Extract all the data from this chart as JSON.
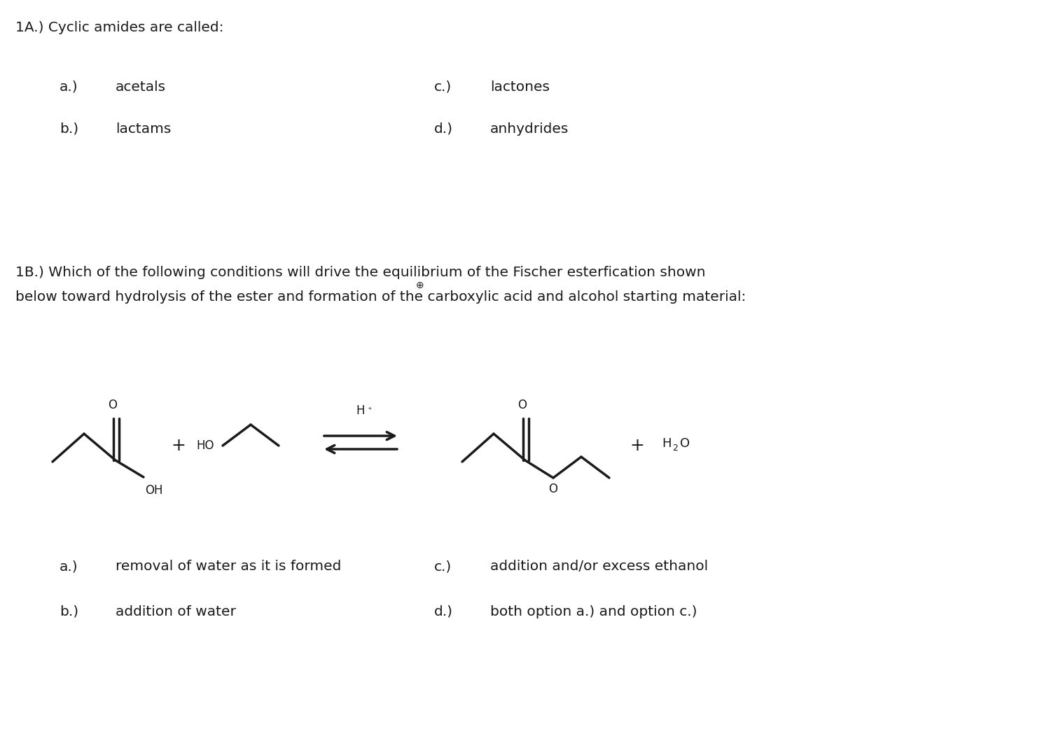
{
  "bg_color": "#ffffff",
  "title_1": "1A.) Cyclic amides are called:",
  "q1_a_label": "a.)",
  "q1_a_text": "acetals",
  "q1_b_label": "b.)",
  "q1_b_text": "lactams",
  "q1_c_label": "c.)",
  "q1_c_text": "lactones",
  "q1_d_label": "d.)",
  "q1_d_text": "anhydrides",
  "title_2_line1": "1B.) Which of the following conditions will drive the equilibrium of the Fischer esterfication shown",
  "title_2_line2": "below toward hydrolysis of the ester and formation of the⁺ carboxylic acid and alcohol starting material:",
  "title_2_line2_plain": "below toward hydrolysis of the ester and formation of the carboxylic acid and alcohol starting material:",
  "q2_a_label": "a.)",
  "q2_a_text": "removal of water as it is formed",
  "q2_b_label": "b.)",
  "q2_b_text": "addition of water",
  "q2_c_label": "c.)",
  "q2_c_text": "addition and/or excess ethanol",
  "q2_d_label": "d.)",
  "q2_d_text": "both option a.) and option c.)",
  "font_size": 14.5,
  "color": "#1a1a1a"
}
